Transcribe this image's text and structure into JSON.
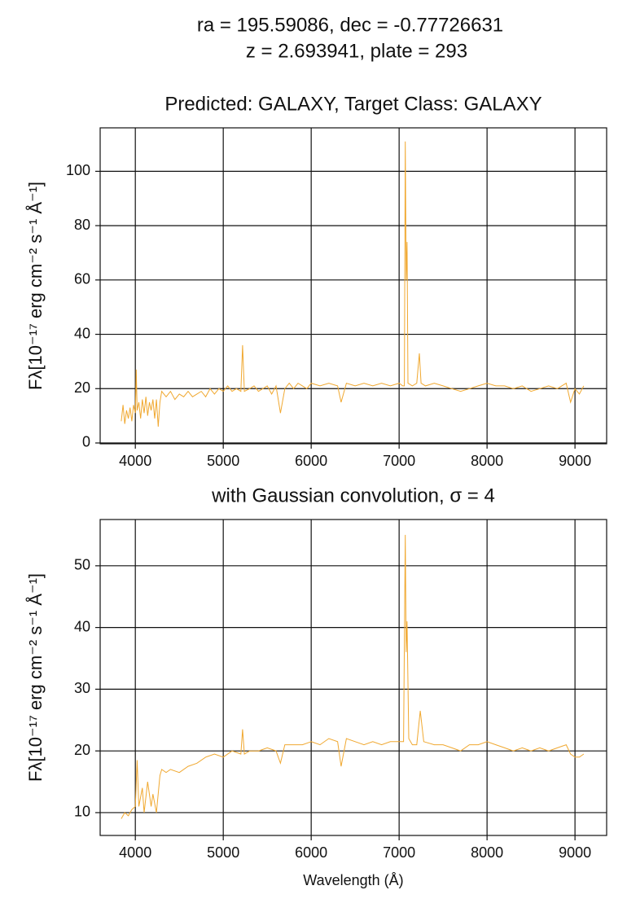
{
  "suptitle": [
    "ra = 195.59086, dec = -0.77726631",
    "z = 2.693941, plate = 293"
  ],
  "chart_data": [
    {
      "type": "line",
      "title": "Predicted: GALAXY, Target Class: GALAXY",
      "ylabel": "Fλ[10⁻¹⁷ erg cm⁻² s⁻¹ Å⁻¹]",
      "grid": true,
      "xlim": [
        3600,
        9360
      ],
      "xticks": [
        4000,
        5000,
        6000,
        7000,
        8000,
        9000
      ],
      "ylim": [
        -0.3,
        116
      ],
      "yticks": [
        0,
        20,
        40,
        60,
        80,
        100
      ],
      "x": [
        3840,
        3860,
        3880,
        3900,
        3920,
        3940,
        3960,
        3980,
        4000,
        4010,
        4020,
        4040,
        4060,
        4080,
        4100,
        4120,
        4140,
        4160,
        4180,
        4200,
        4220,
        4240,
        4260,
        4280,
        4300,
        4350,
        4400,
        4450,
        4500,
        4550,
        4600,
        4650,
        4700,
        4750,
        4800,
        4850,
        4900,
        4950,
        5000,
        5050,
        5100,
        5150,
        5200,
        5220,
        5240,
        5300,
        5350,
        5400,
        5450,
        5500,
        5550,
        5600,
        5650,
        5700,
        5750,
        5800,
        5850,
        5900,
        5950,
        6000,
        6100,
        6200,
        6300,
        6340,
        6400,
        6500,
        6600,
        6700,
        6800,
        6900,
        7000,
        7040,
        7060,
        7070,
        7080,
        7090,
        7100,
        7150,
        7200,
        7230,
        7250,
        7300,
        7400,
        7500,
        7600,
        7700,
        7800,
        7900,
        8000,
        8100,
        8200,
        8300,
        8400,
        8500,
        8600,
        8700,
        8800,
        8900,
        8950,
        9000,
        9050,
        9100
      ],
      "series": [
        {
          "color": "#f0a830",
          "values": [
            8,
            14,
            7,
            12,
            9,
            13,
            8,
            14,
            11,
            27,
            12,
            15,
            9,
            16,
            11,
            17,
            10,
            15,
            12,
            16,
            9,
            16,
            6,
            15,
            19,
            17,
            19,
            16,
            18,
            17,
            19,
            17,
            18,
            19,
            17,
            20,
            18,
            20,
            19,
            21,
            19,
            20,
            19,
            36,
            19,
            20,
            21,
            19,
            20,
            21,
            18,
            21,
            11,
            20,
            22,
            20,
            22,
            21,
            20,
            22,
            21,
            22,
            21,
            15,
            22,
            21,
            22,
            21,
            22,
            21,
            22,
            21,
            21,
            111,
            60,
            74,
            22,
            21,
            22,
            33,
            22,
            21,
            22,
            21,
            20,
            19,
            20,
            21,
            22,
            21,
            21,
            20,
            21,
            19,
            20,
            21,
            20,
            22,
            15,
            20,
            18,
            21
          ]
        }
      ]
    },
    {
      "type": "line",
      "title": "with Gaussian convolution, σ = 4",
      "ylabel": "Fλ[10⁻¹⁷ erg cm⁻² s⁻¹ Å⁻¹]",
      "xlabel": "Wavelength (Å)",
      "grid": true,
      "xlim": [
        3600,
        9360
      ],
      "xticks": [
        4000,
        5000,
        6000,
        7000,
        8000,
        9000
      ],
      "ylim": [
        6.3,
        57.5
      ],
      "yticks": [
        10,
        20,
        30,
        40,
        50
      ],
      "x": [
        3840,
        3880,
        3920,
        3960,
        4000,
        4020,
        4040,
        4080,
        4100,
        4140,
        4180,
        4200,
        4240,
        4280,
        4300,
        4350,
        4400,
        4500,
        4600,
        4700,
        4800,
        4900,
        5000,
        5100,
        5200,
        5220,
        5240,
        5300,
        5400,
        5500,
        5600,
        5650,
        5700,
        5800,
        5900,
        6000,
        6100,
        6200,
        6300,
        6340,
        6400,
        6500,
        6600,
        6700,
        6800,
        6900,
        7000,
        7050,
        7070,
        7080,
        7090,
        7110,
        7150,
        7200,
        7240,
        7280,
        7400,
        7500,
        7600,
        7700,
        7800,
        7900,
        8000,
        8100,
        8200,
        8300,
        8400,
        8500,
        8600,
        8700,
        8800,
        8900,
        8950,
        9000,
        9050,
        9100
      ],
      "series": [
        {
          "color": "#f0a830",
          "values": [
            9,
            10,
            9.5,
            10.5,
            11,
            18.5,
            11,
            14,
            10,
            15,
            11,
            13,
            10,
            16,
            17,
            16.5,
            17,
            16.5,
            17.5,
            18,
            19,
            19.5,
            19,
            20,
            19.5,
            23.5,
            19.5,
            20,
            20,
            20.5,
            20,
            18,
            21,
            21,
            21,
            21.5,
            21,
            22,
            21.5,
            17.5,
            22,
            21.5,
            21,
            21.5,
            21,
            21.5,
            21.5,
            21.5,
            55,
            36,
            41,
            22,
            21,
            21,
            26.5,
            21.5,
            21,
            21,
            20.5,
            20,
            21,
            21,
            21.5,
            21,
            20.5,
            20,
            20.5,
            20,
            20.5,
            20,
            20.5,
            21,
            19.5,
            19,
            19,
            19.5
          ]
        }
      ]
    }
  ]
}
